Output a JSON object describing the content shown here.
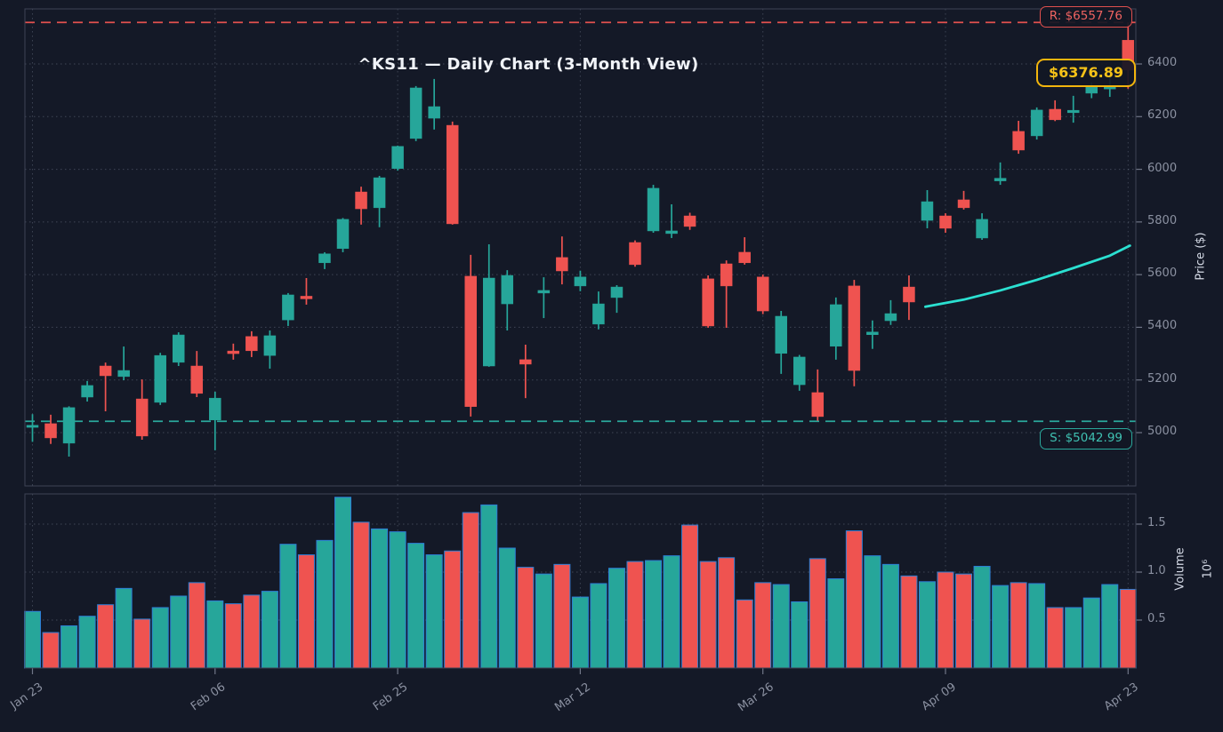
{
  "title": "^KS11 — Daily Chart (3-Month View)",
  "annotations": {
    "resistance": {
      "label": "R: $6557.76",
      "value": 6557.76
    },
    "support": {
      "label": "S: $5042.99",
      "value": 5042.99
    },
    "current_price": {
      "label": "$6376.89",
      "value": 6376.89
    }
  },
  "axes": {
    "price_label": "Price ($)",
    "volume_label": "Volume",
    "volume_scale": "10⁶",
    "price_ticks": [
      5000,
      5200,
      5400,
      5600,
      5800,
      6000,
      6200,
      6400
    ],
    "volume_ticks": [
      0.5,
      1.0,
      1.5
    ],
    "date_ticks": [
      {
        "index": 0,
        "label": "Jan 23"
      },
      {
        "index": 10,
        "label": "Feb 06"
      },
      {
        "index": 20,
        "label": "Feb 25"
      },
      {
        "index": 30,
        "label": "Mar 12"
      },
      {
        "index": 40,
        "label": "Mar 26"
      },
      {
        "index": 50,
        "label": "Apr 09"
      },
      {
        "index": 60,
        "label": "Apr 23"
      }
    ]
  },
  "colors": {
    "background": "#141927",
    "up": "#26a69a",
    "down": "#ef5350",
    "resistance": "#e0504e",
    "support": "#2aa79b",
    "current": "#f2b50d",
    "trendline": "#2be0d1",
    "volume_edge": "#2d7fd6",
    "grid": "#9aa4b8",
    "spine": "#3e4456",
    "tick_text": "#8b91a1"
  },
  "chart_data": {
    "type": "candlestick",
    "panels": [
      "price",
      "volume"
    ],
    "price_ylim": [
      4800,
      6610
    ],
    "volume_ylim": [
      0,
      1.81
    ],
    "x_count": 61,
    "ohlc": [
      [
        5020,
        5070,
        4965,
        5028
      ],
      [
        5034,
        5068,
        4957,
        4980
      ],
      [
        4960,
        5100,
        4909,
        5095
      ],
      [
        5135,
        5196,
        5118,
        5179
      ],
      [
        5253,
        5266,
        5081,
        5216
      ],
      [
        5213,
        5327,
        5199,
        5236
      ],
      [
        5128,
        5202,
        4973,
        4987
      ],
      [
        5115,
        5303,
        5105,
        5293
      ],
      [
        5267,
        5381,
        5253,
        5371
      ],
      [
        5253,
        5310,
        5135,
        5149
      ],
      [
        5048,
        5155,
        4933,
        5131
      ],
      [
        5310,
        5338,
        5277,
        5300
      ],
      [
        5365,
        5385,
        5287,
        5311
      ],
      [
        5293,
        5388,
        5243,
        5368
      ],
      [
        5428,
        5530,
        5405,
        5523
      ],
      [
        5518,
        5587,
        5486,
        5508
      ],
      [
        5645,
        5685,
        5621,
        5679
      ],
      [
        5699,
        5815,
        5685,
        5810
      ],
      [
        5914,
        5934,
        5790,
        5850
      ],
      [
        5854,
        5975,
        5780,
        5968
      ],
      [
        6003,
        6090,
        5995,
        6087
      ],
      [
        6117,
        6316,
        6107,
        6309
      ],
      [
        6194,
        6343,
        6151,
        6238
      ],
      [
        6167,
        6181,
        5790,
        5793
      ],
      [
        5594,
        5675,
        5061,
        5099
      ],
      [
        5253,
        5715,
        5250,
        5587
      ],
      [
        5489,
        5617,
        5388,
        5597
      ],
      [
        5277,
        5334,
        5131,
        5260
      ],
      [
        5530,
        5590,
        5435,
        5540
      ],
      [
        5665,
        5745,
        5563,
        5614
      ],
      [
        5557,
        5615,
        5537,
        5591
      ],
      [
        5412,
        5536,
        5392,
        5489
      ],
      [
        5513,
        5560,
        5455,
        5553
      ],
      [
        5722,
        5730,
        5630,
        5638
      ],
      [
        5766,
        5941,
        5759,
        5928
      ],
      [
        5756,
        5867,
        5739,
        5766
      ],
      [
        5823,
        5835,
        5770,
        5783
      ],
      [
        5584,
        5597,
        5398,
        5405
      ],
      [
        5641,
        5654,
        5398,
        5557
      ],
      [
        5685,
        5742,
        5638,
        5645
      ],
      [
        5591,
        5600,
        5450,
        5462
      ],
      [
        5301,
        5462,
        5223,
        5442
      ],
      [
        5182,
        5295,
        5159,
        5287
      ],
      [
        5152,
        5240,
        5045,
        5061
      ],
      [
        5328,
        5513,
        5277,
        5486
      ],
      [
        5557,
        5580,
        5176,
        5236
      ],
      [
        5372,
        5426,
        5318,
        5382
      ],
      [
        5425,
        5503,
        5409,
        5452
      ],
      [
        5553,
        5597,
        5428,
        5496
      ],
      [
        5806,
        5921,
        5776,
        5877
      ],
      [
        5823,
        5833,
        5759,
        5776
      ],
      [
        5884,
        5918,
        5847,
        5854
      ],
      [
        5739,
        5833,
        5732,
        5810
      ],
      [
        5956,
        6026,
        5941,
        5966
      ],
      [
        6144,
        6184,
        6059,
        6073
      ],
      [
        6127,
        6235,
        6113,
        6225
      ],
      [
        6228,
        6262,
        6183,
        6188
      ],
      [
        6215,
        6279,
        6177,
        6224
      ],
      [
        6289,
        6330,
        6270,
        6316
      ],
      [
        6305,
        6350,
        6275,
        6315
      ],
      [
        6490,
        6557.76,
        6306,
        6376.89
      ]
    ],
    "volumes_millions": [
      0.59,
      0.37,
      0.44,
      0.54,
      0.66,
      0.83,
      0.51,
      0.63,
      0.75,
      0.89,
      0.7,
      0.67,
      0.76,
      0.8,
      1.29,
      1.18,
      1.33,
      1.78,
      1.52,
      1.45,
      1.42,
      1.3,
      1.18,
      1.22,
      1.62,
      1.7,
      1.25,
      1.05,
      0.98,
      1.08,
      0.74,
      0.88,
      1.04,
      1.11,
      1.12,
      1.17,
      1.49,
      1.11,
      1.15,
      0.71,
      0.89,
      0.87,
      0.69,
      1.14,
      0.93,
      1.43,
      1.17,
      1.08,
      0.96,
      0.9,
      1.0,
      0.98,
      1.06,
      0.86,
      0.89,
      0.88,
      0.63,
      0.63,
      0.73,
      0.87,
      0.82
    ],
    "trendline": {
      "points": [
        [
          48.9,
          5478
        ],
        [
          51,
          5505
        ],
        [
          53,
          5540
        ],
        [
          55,
          5580
        ],
        [
          57,
          5625
        ],
        [
          59,
          5672
        ],
        [
          60.1,
          5710
        ]
      ]
    },
    "grid": true,
    "legend": null
  }
}
